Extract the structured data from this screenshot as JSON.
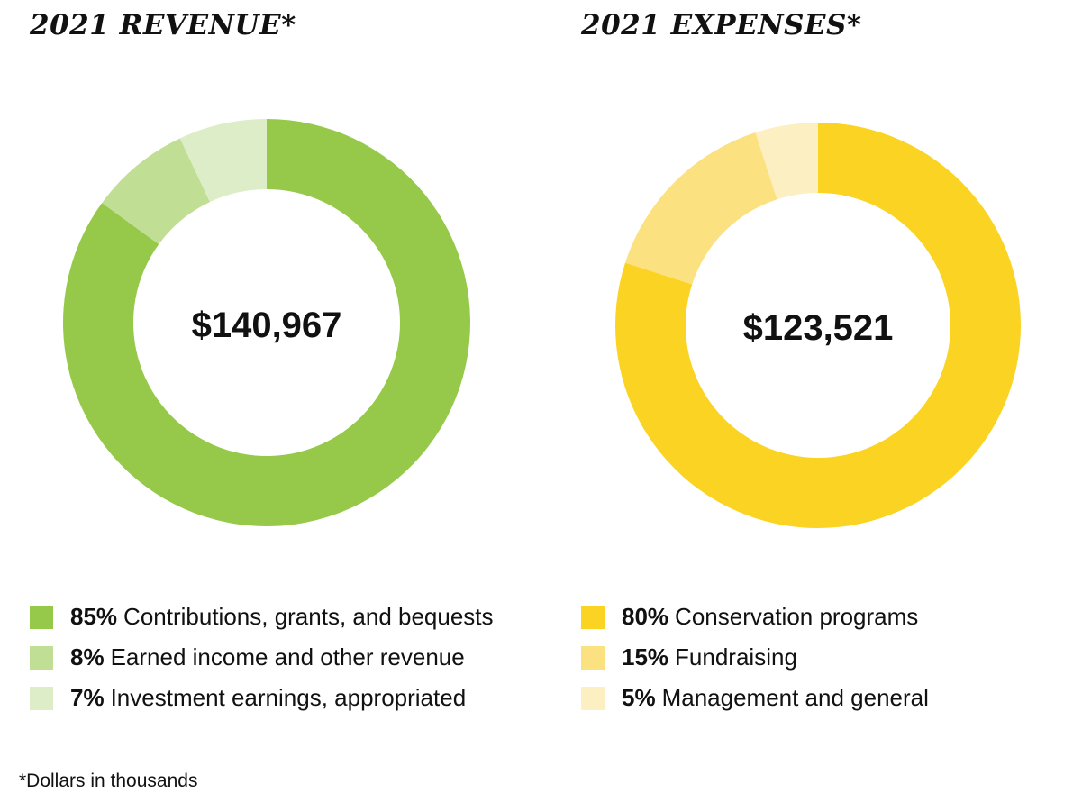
{
  "chart_data": [
    {
      "type": "pie",
      "title": "2021 REVENUE*",
      "center_label": "$140,967",
      "donut": true,
      "legend_position": "bottom",
      "slices": [
        {
          "pct_label": "85%",
          "label": "Contributions, grants, and bequests",
          "value": 85,
          "color": "#96C94A"
        },
        {
          "pct_label": "8%",
          "label": "Earned income and other revenue",
          "value": 8,
          "color": "#C0DE94"
        },
        {
          "pct_label": "7%",
          "label": "Investment earnings, appropriated",
          "value": 7,
          "color": "#DDEDC8"
        }
      ]
    },
    {
      "type": "pie",
      "title": "2021 EXPENSES*",
      "center_label": "$123,521",
      "donut": true,
      "legend_position": "bottom",
      "slices": [
        {
          "pct_label": "80%",
          "label": "Conservation programs",
          "value": 80,
          "color": "#FBD323"
        },
        {
          "pct_label": "15%",
          "label": "Fundraising",
          "value": 15,
          "color": "#FBE17F"
        },
        {
          "pct_label": "5%",
          "label": "Management and general",
          "value": 5,
          "color": "#FCEFC1"
        }
      ]
    }
  ],
  "footnote": "*Dollars in thousands"
}
